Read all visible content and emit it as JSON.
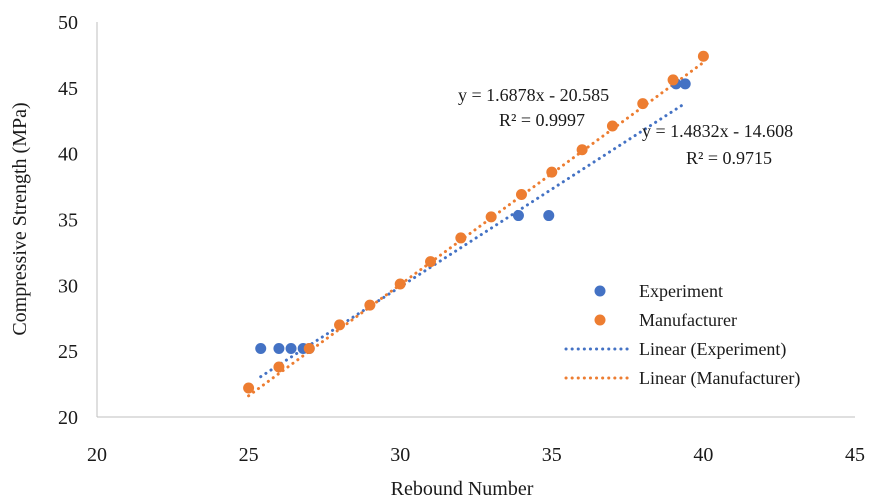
{
  "chart_data": {
    "type": "scatter",
    "title": "",
    "xlabel": "Rebound Number",
    "ylabel": "Compressive Strength (MPa)",
    "xlim": [
      20,
      45
    ],
    "ylim": [
      20,
      50
    ],
    "x_ticks": [
      "20",
      "25",
      "30",
      "35",
      "40",
      "45"
    ],
    "y_ticks": [
      "20",
      "25",
      "30",
      "35",
      "40",
      "45",
      "50"
    ],
    "grid": false,
    "legend_position": "bottom-right",
    "series": [
      {
        "name": "Experiment",
        "color": "#4472c4",
        "points": [
          [
            25.4,
            25.2
          ],
          [
            26.0,
            25.2
          ],
          [
            26.4,
            25.2
          ],
          [
            26.8,
            25.2
          ],
          [
            27.0,
            25.2
          ],
          [
            33.9,
            35.3
          ],
          [
            34.9,
            35.3
          ],
          [
            39.1,
            45.3
          ],
          [
            39.4,
            45.3
          ]
        ],
        "trendline": {
          "name": "Linear (Experiment)",
          "slope": 1.4832,
          "intercept": -14.608,
          "x_range": [
            25.4,
            39.4
          ],
          "equation": "y = 1.4832x - 14.608",
          "r2": "R² = 0.9715"
        }
      },
      {
        "name": "Manufacturer",
        "color": "#ed7d31",
        "points": [
          [
            25.0,
            22.2
          ],
          [
            26.0,
            23.8
          ],
          [
            27.0,
            25.2
          ],
          [
            28.0,
            27.0
          ],
          [
            29.0,
            28.5
          ],
          [
            30.0,
            30.1
          ],
          [
            31.0,
            31.8
          ],
          [
            32.0,
            33.6
          ],
          [
            33.0,
            35.2
          ],
          [
            34.0,
            36.9
          ],
          [
            35.0,
            38.6
          ],
          [
            36.0,
            40.3
          ],
          [
            37.0,
            42.1
          ],
          [
            38.0,
            43.8
          ],
          [
            39.0,
            45.6
          ],
          [
            40.0,
            47.4
          ]
        ],
        "trendline": {
          "name": "Linear (Manufacturer)",
          "slope": 1.6878,
          "intercept": -20.585,
          "x_range": [
            25.0,
            40.0
          ],
          "equation": "y = 1.6878x - 20.585",
          "r2": "R² = 0.9997"
        }
      }
    ]
  }
}
